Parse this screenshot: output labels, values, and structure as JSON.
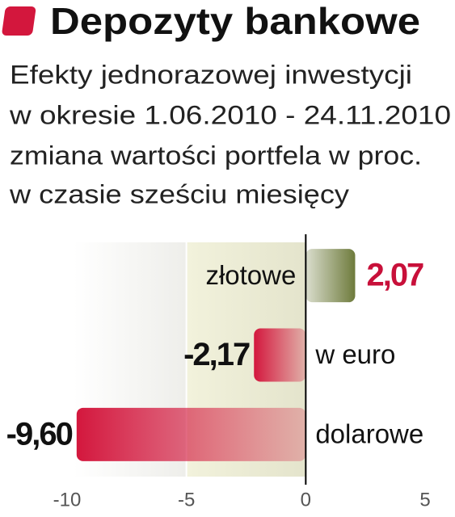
{
  "chart_data": {
    "type": "bar",
    "orientation": "horizontal",
    "title": "Depozyty bankowe",
    "subtitle": [
      "Efekty jednorazowej inwestycji",
      "w okresie 1.06.2010 - 24.11.2010",
      "zmiana wartości portfela w proc.",
      "w czasie sześciu miesięcy"
    ],
    "categories": [
      "złotowe",
      "w euro",
      "dolarowe"
    ],
    "values": [
      2.07,
      -2.17,
      -9.6
    ],
    "value_labels": [
      "2,07",
      "-2,17",
      "-9,60"
    ],
    "colors": [
      "#6e7b3c",
      "#d3173d",
      "#d3173d"
    ],
    "xlim": [
      -10,
      5
    ],
    "xticks": [
      -10,
      -5,
      0,
      5
    ]
  }
}
